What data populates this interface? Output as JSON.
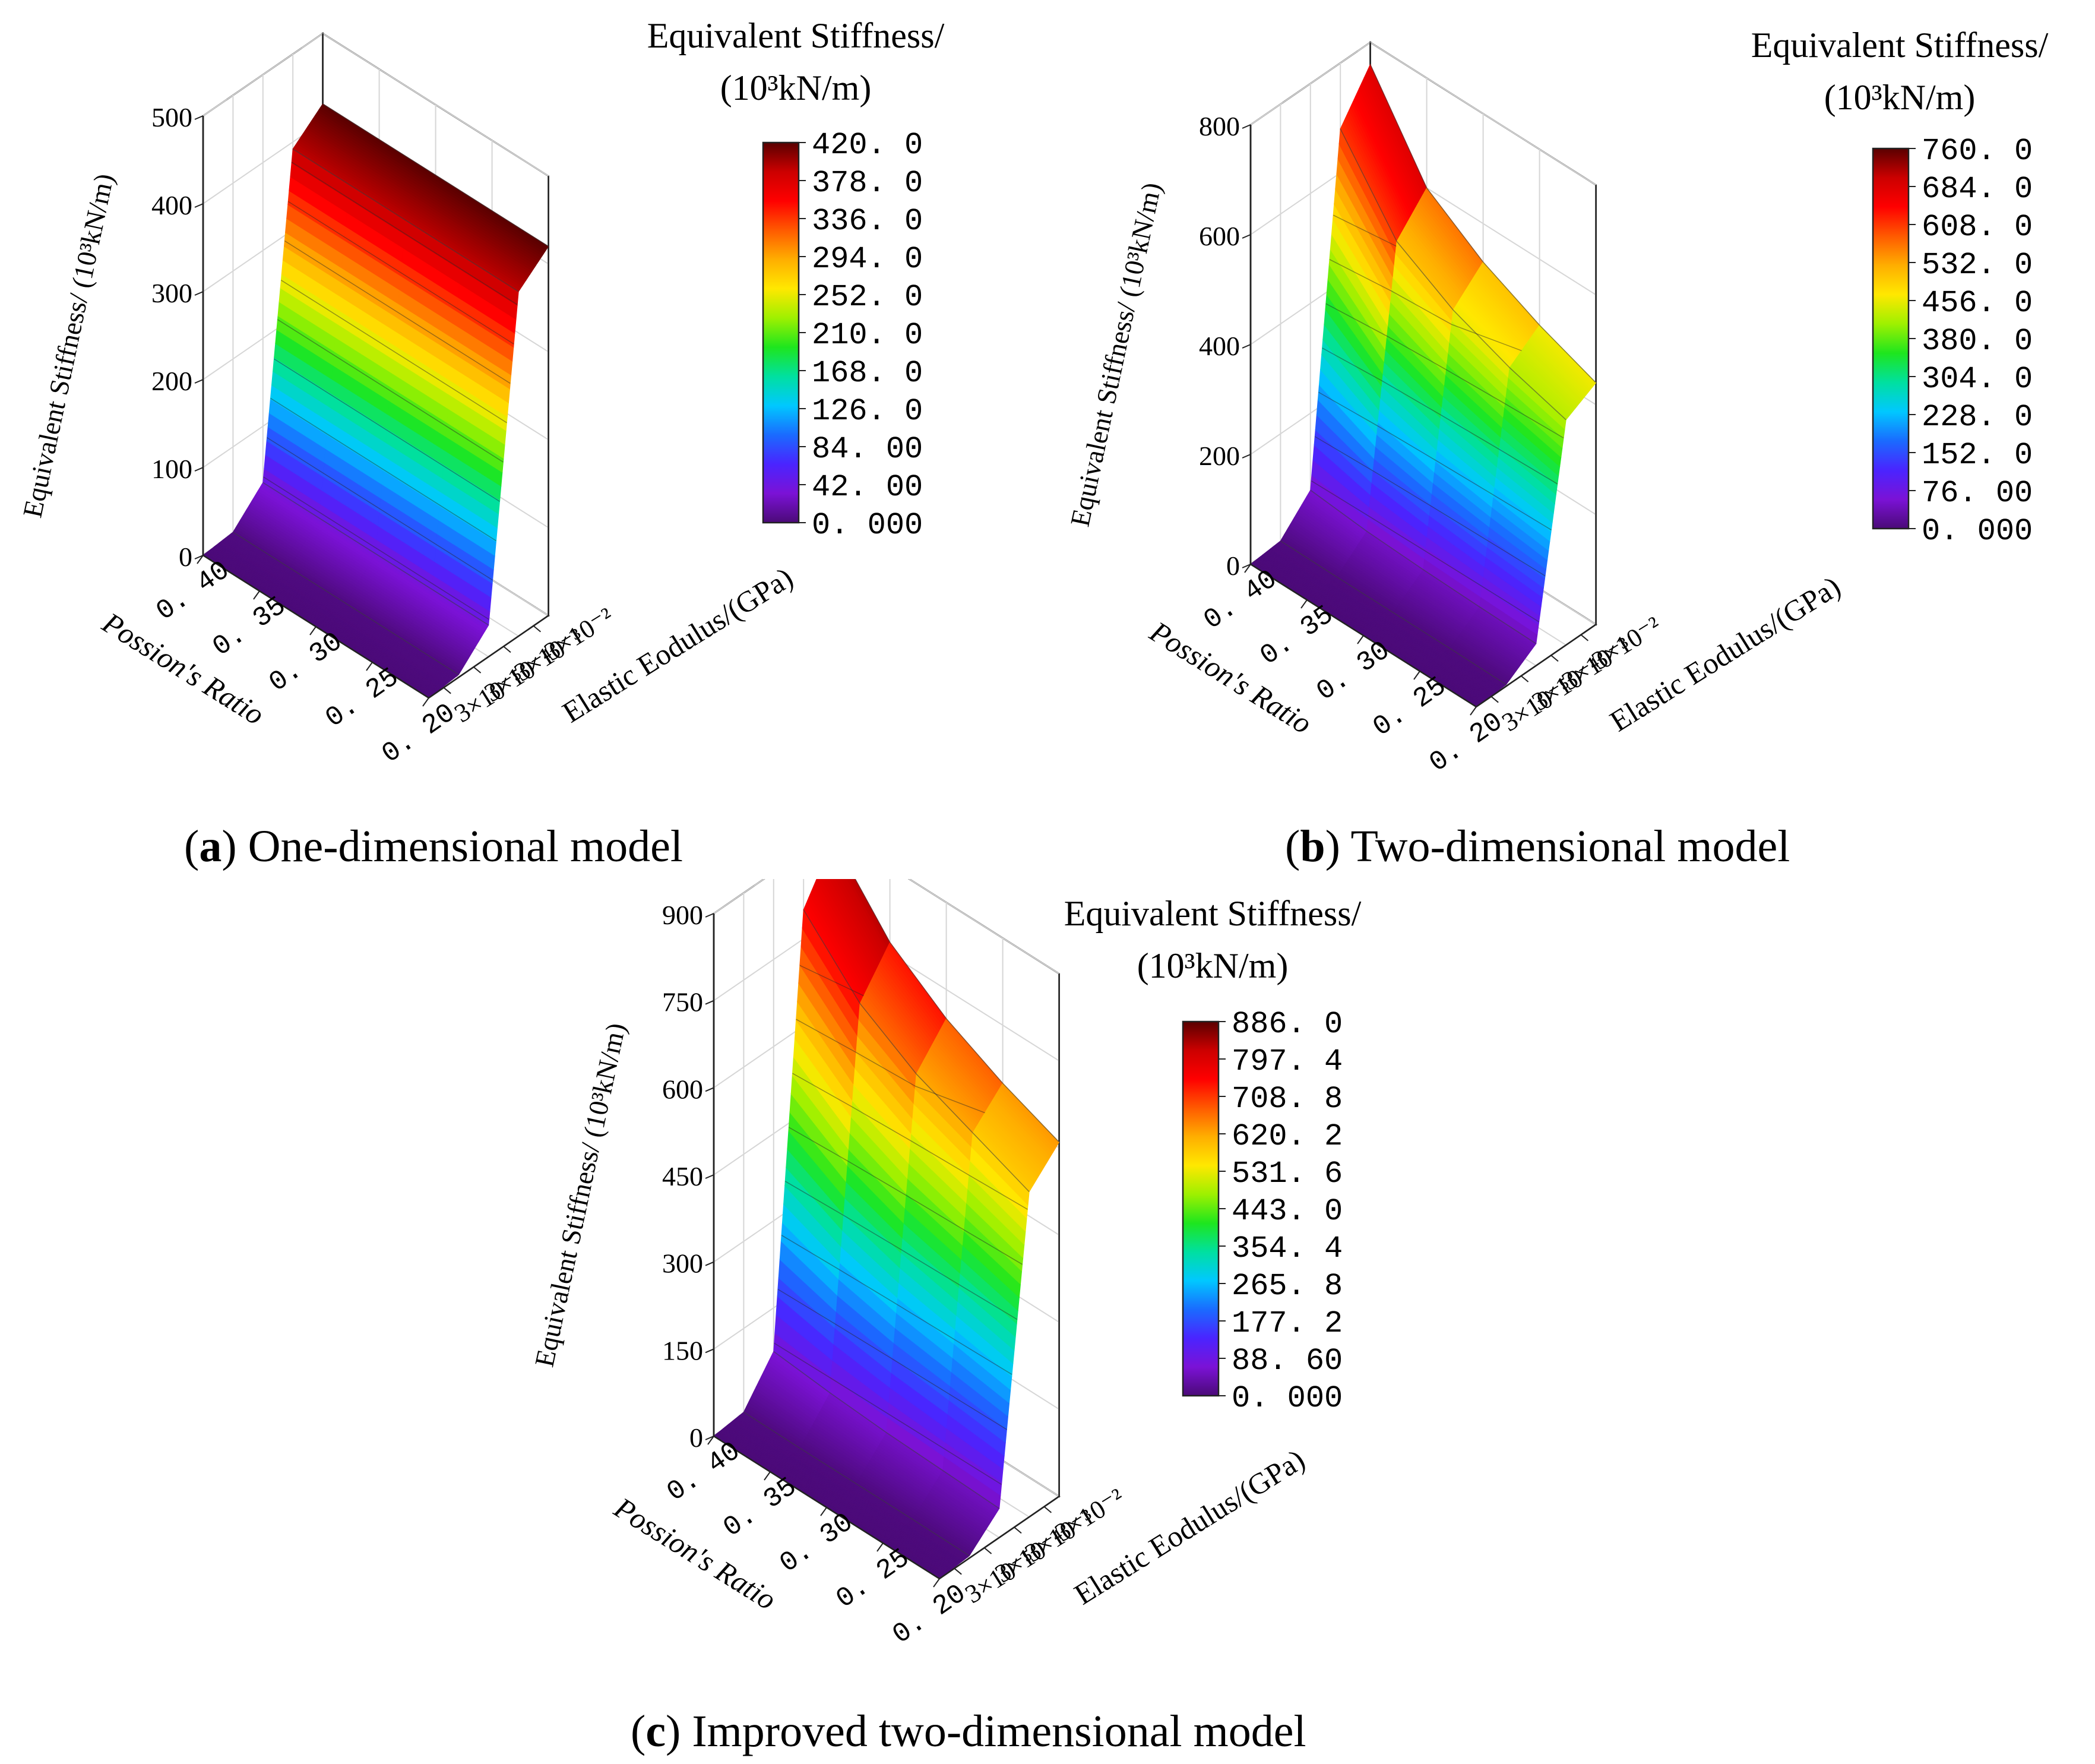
{
  "figure": {
    "colormap": [
      "#4b0a78",
      "#7b12d6",
      "#4a24ff",
      "#1a6bff",
      "#00c8ff",
      "#00e0a0",
      "#1ee61e",
      "#9ef000",
      "#ffe800",
      "#ffae00",
      "#ff5a00",
      "#ff0000",
      "#cc0000",
      "#5a0000"
    ],
    "grid_color": "#d6d6d6",
    "axis_color": "#222222"
  },
  "chart_data": [
    {
      "type": "surface3d",
      "id": "a",
      "caption_letter": "a",
      "caption_text": ") One-dimensional model",
      "caption_open": "(",
      "colorbar_title_line1": "Equivalent Stiffness/",
      "colorbar_title_line2": "(10³kN/m)",
      "colorbar_ticks": [
        "420. 0",
        "378. 0",
        "336. 0",
        "294. 0",
        "252. 0",
        "210. 0",
        "168. 0",
        "126. 0",
        "84. 00",
        "42. 00",
        "0. 000"
      ],
      "colorbar_range": [
        0,
        420
      ],
      "zlabel": "Equivalent Stiffness/ (10³kN/m)",
      "zlim": [
        0,
        500
      ],
      "zticks": [
        "0",
        "100",
        "200",
        "300",
        "400",
        "500"
      ],
      "zvalues": [
        0,
        100,
        200,
        300,
        400,
        500
      ],
      "xlabel": "Possion's Ratio",
      "xticks": [
        "0. 40",
        "0. 35",
        "0. 30",
        "0. 25",
        "0. 20"
      ],
      "ylabel": "Elastic Eodulus/(GPa)",
      "yticks": [
        "3×10⁻⁵",
        "3×10⁻⁴",
        "3×10⁻³",
        "3×10⁻²"
      ],
      "x": [
        0.4,
        0.35,
        0.3,
        0.25,
        0.2
      ],
      "y_log10": [
        -4.52,
        -3.52,
        -2.52,
        -1.52,
        -0.52
      ],
      "z": [
        [
          0,
          3,
          36,
          392,
          420
        ],
        [
          0,
          3,
          36,
          392,
          420
        ],
        [
          0,
          3,
          36,
          392,
          420
        ],
        [
          0,
          3,
          36,
          392,
          420
        ],
        [
          0,
          3,
          36,
          392,
          420
        ]
      ]
    },
    {
      "type": "surface3d",
      "id": "b",
      "caption_letter": "b",
      "caption_text": ") Two-dimensional model",
      "caption_open": "(",
      "colorbar_title_line1": "Equivalent Stiffness/",
      "colorbar_title_line2": "(10³kN/m)",
      "colorbar_ticks": [
        "760. 0",
        "684. 0",
        "608. 0",
        "532. 0",
        "456. 0",
        "380. 0",
        "304. 0",
        "228. 0",
        "152. 0",
        "76. 00",
        "0. 000"
      ],
      "colorbar_range": [
        0,
        760
      ],
      "zlabel": "Equivalent Stiffness/ (10³kN/m)",
      "zlim": [
        0,
        800
      ],
      "zticks": [
        "0",
        "200",
        "400",
        "600",
        "800"
      ],
      "zvalues": [
        0,
        200,
        400,
        600,
        800
      ],
      "xlabel": "Possion's Ratio",
      "xticks": [
        "0. 40",
        "0. 35",
        "0. 30",
        "0. 25",
        "0. 20"
      ],
      "ylabel": "Elastic Eodulus/(GPa)",
      "yticks": [
        "3×10⁻⁵",
        "3×10⁻⁴",
        "3×10⁻³",
        "3×10⁻²"
      ],
      "x": [
        0.4,
        0.35,
        0.3,
        0.25,
        0.2
      ],
      "y_log10": [
        -4.52,
        -3.52,
        -2.52,
        -1.52,
        -0.52
      ],
      "z": [
        [
          0,
          5,
          60,
          680,
          760
        ],
        [
          0,
          4,
          50,
          540,
          600
        ],
        [
          0,
          4,
          45,
          480,
          530
        ],
        [
          0,
          4,
          42,
          440,
          480
        ],
        [
          0,
          3,
          40,
          410,
          440
        ]
      ]
    },
    {
      "type": "surface3d",
      "id": "c",
      "caption_letter": "c",
      "caption_text": ") Improved two-dimensional model",
      "caption_open": "(",
      "colorbar_title_line1": "Equivalent Stiffness/",
      "colorbar_title_line2": "(10³kN/m)",
      "colorbar_ticks": [
        "886. 0",
        "797. 4",
        "708. 8",
        "620. 2",
        "531. 6",
        "443. 0",
        "354. 4",
        "265. 8",
        "177. 2",
        "88. 60",
        "0. 000"
      ],
      "colorbar_range": [
        0,
        886
      ],
      "zlabel": "Equivalent Stiffness/ (10³kN/m)",
      "zlim": [
        0,
        900
      ],
      "zticks": [
        "0",
        "150",
        "300",
        "450",
        "600",
        "750",
        "900"
      ],
      "zvalues": [
        0,
        150,
        300,
        450,
        600,
        750,
        900
      ],
      "xlabel": "Possion's Ratio",
      "xticks": [
        "0. 40",
        "0. 35",
        "0. 30",
        "0. 25",
        "0. 20"
      ],
      "ylabel": "Elastic Eodulus/(GPa)",
      "yticks": [
        "3×10⁻⁵",
        "3×10⁻⁴",
        "3×10⁻³",
        "3×10⁻²"
      ],
      "x": [
        0.4,
        0.35,
        0.3,
        0.25,
        0.2
      ],
      "y_log10": [
        -4.52,
        -3.52,
        -2.52,
        -1.52,
        -0.52
      ],
      "z": [
        [
          0,
          6,
          75,
          800,
          886
        ],
        [
          0,
          5,
          65,
          700,
          770
        ],
        [
          0,
          5,
          58,
          640,
          700
        ],
        [
          0,
          5,
          54,
          600,
          650
        ],
        [
          0,
          4,
          50,
          560,
          610
        ]
      ]
    }
  ]
}
